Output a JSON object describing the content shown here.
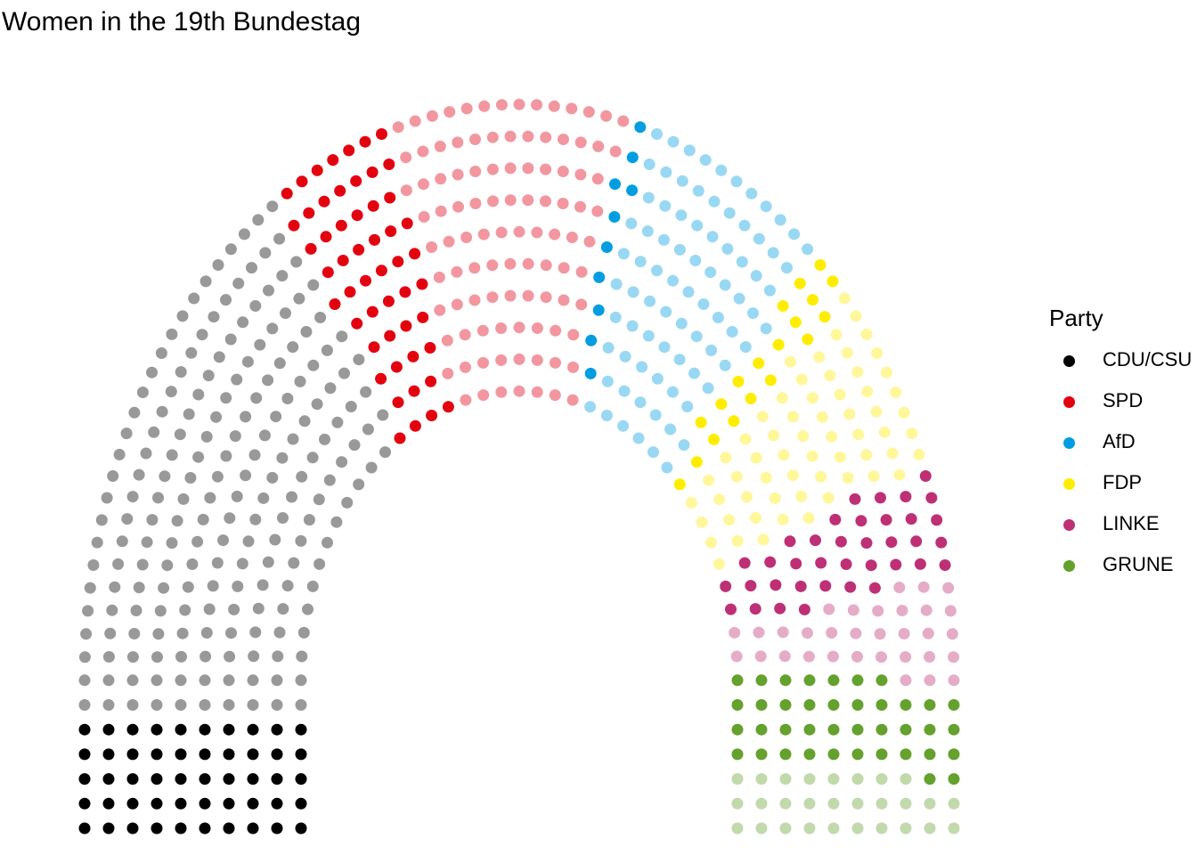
{
  "chart_data": {
    "type": "scatter",
    "subtype": "parliament-arch",
    "title": "Women in the 19th Bundestag",
    "xlabel": "",
    "ylabel": "",
    "grid": false,
    "legend_title": "Party",
    "legend_position": "right",
    "highlight_note": "full-colour dot = woman, faded dot = man",
    "parties": [
      {
        "name": "CDU/CSU",
        "color": "#000000",
        "faded": "#999999",
        "seats": 246,
        "women": 50
      },
      {
        "name": "SPD",
        "color": "#e3000f",
        "faded": "#f2979f",
        "seats": 153,
        "women": 52
      },
      {
        "name": "AfD",
        "color": "#009ee0",
        "faded": "#99d8f3",
        "seats": 92,
        "women": 10
      },
      {
        "name": "FDP",
        "color": "#ffed00",
        "faded": "#fff799",
        "seats": 80,
        "women": 19
      },
      {
        "name": "LINKE",
        "color": "#be3075",
        "faded": "#e5acc8",
        "seats": 69,
        "women": 37
      },
      {
        "name": "GRUNE",
        "color": "#64a12d",
        "faded": "#c1d9ab",
        "seats": 67,
        "women": 39
      }
    ]
  }
}
